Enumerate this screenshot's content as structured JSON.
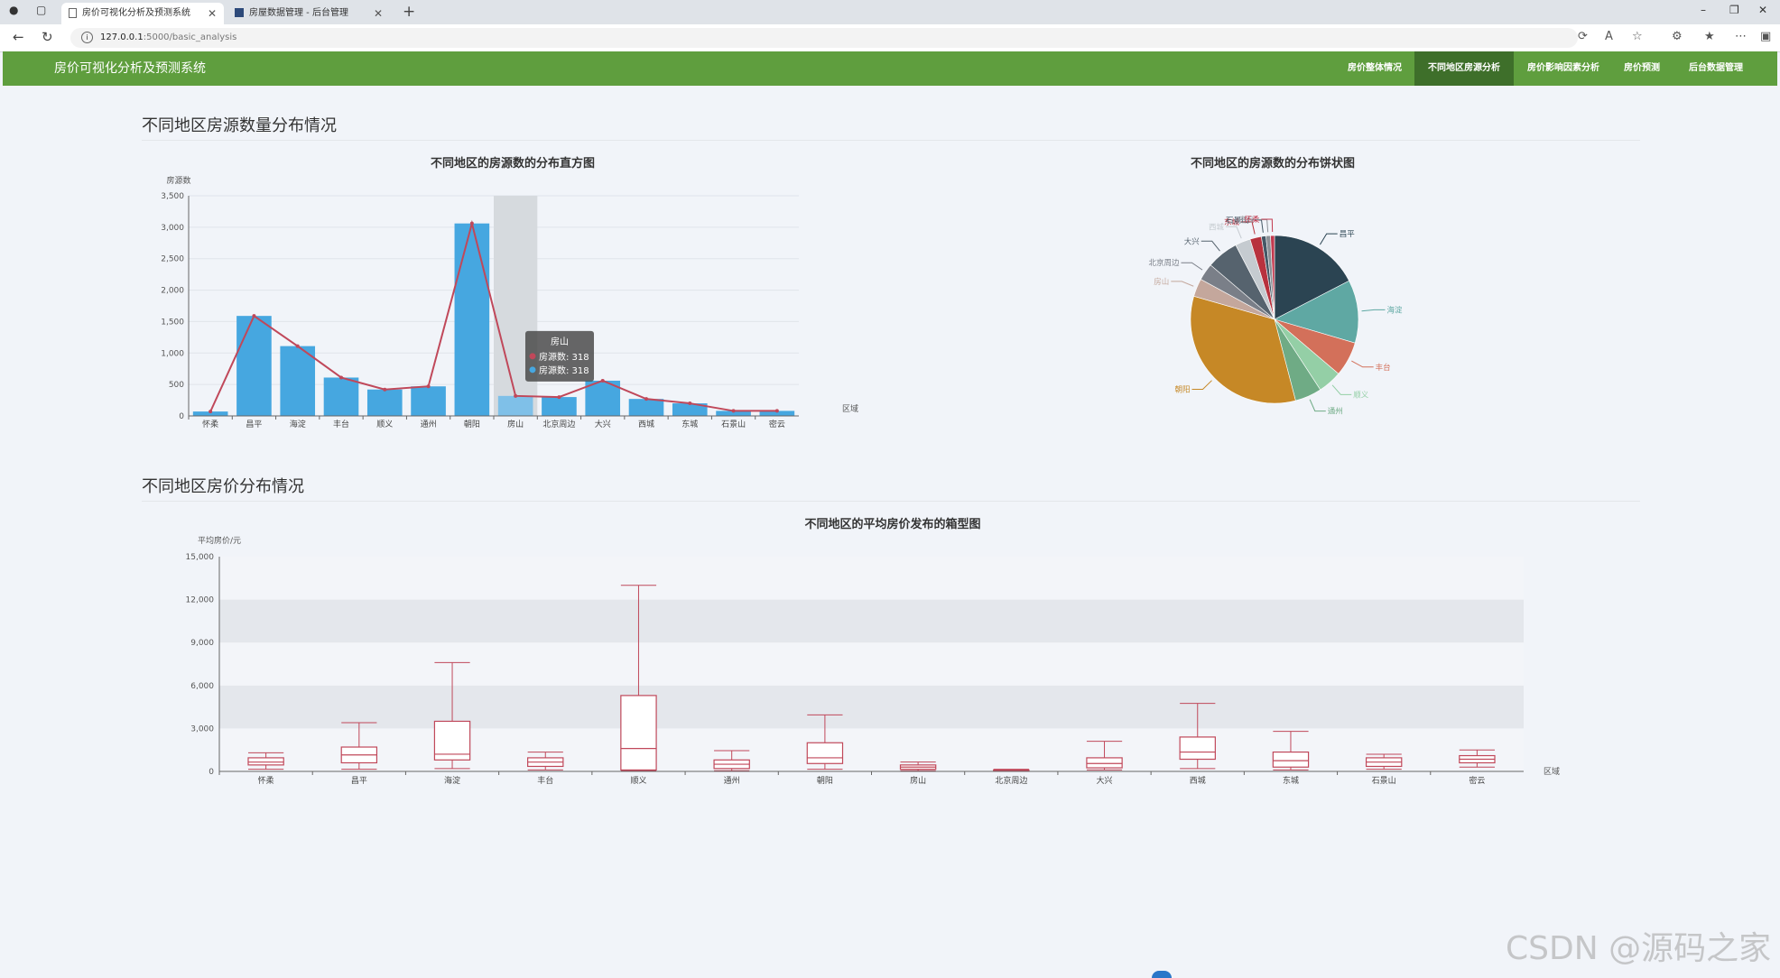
{
  "browser": {
    "tabs": [
      {
        "title": "房价可视化分析及预测系统"
      },
      {
        "title": "房屋数据管理 - 后台管理"
      }
    ],
    "url_host": "127.0.0.1",
    "url_path": ":5000/basic_analysis"
  },
  "app": {
    "brand": "房价可视化分析及预测系统",
    "nav": [
      {
        "label": "房价整体情况"
      },
      {
        "label": "不同地区房源分析",
        "active": true
      },
      {
        "label": "房价影响因素分析"
      },
      {
        "label": "房价预测"
      },
      {
        "label": "后台数据管理"
      }
    ]
  },
  "sections": {
    "count_title": "不同地区房源数量分布情况",
    "price_title": "不同地区房价分布情况"
  },
  "watermark": "CSDN @源码之家",
  "colors": {
    "nav_green": "#5f9e3e",
    "nav_active": "#3e6f2a",
    "bar_blue": "#46a7e0",
    "line_red": "#c0485a",
    "box_red": "#c0485a"
  },
  "chart_data": [
    {
      "type": "bar",
      "title": "不同地区的房源数的分布直方图",
      "xlabel": "区域",
      "ylabel": "房源数",
      "ylim": [
        0,
        3500
      ],
      "yticks": [
        "0",
        "500",
        "1,000",
        "1,500",
        "2,000",
        "2,500",
        "3,000",
        "3,500"
      ],
      "categories": [
        "怀柔",
        "昌平",
        "海淀",
        "丰台",
        "顺义",
        "通州",
        "朝阳",
        "房山",
        "北京周边",
        "大兴",
        "西城",
        "东城",
        "石景山",
        "密云"
      ],
      "series": [
        {
          "name": "房源数",
          "kind": "bar",
          "values": [
            70,
            1590,
            1110,
            610,
            420,
            470,
            3060,
            318,
            300,
            560,
            270,
            200,
            80,
            80
          ]
        },
        {
          "name": "房源数",
          "kind": "line",
          "values": [
            70,
            1590,
            1110,
            610,
            420,
            470,
            3060,
            318,
            300,
            560,
            270,
            200,
            80,
            80
          ]
        }
      ],
      "tooltip": {
        "category": "房山",
        "rows": [
          {
            "label": "房源数",
            "value": "318"
          },
          {
            "label": "房源数",
            "value": "318"
          }
        ]
      },
      "grid": true
    },
    {
      "type": "pie",
      "title": "不同地区的房源数的分布饼状图",
      "slices": [
        {
          "label": "昌平",
          "value": 1590,
          "color": "#2b4452"
        },
        {
          "label": "海淀",
          "value": 1110,
          "color": "#5fa8a3"
        },
        {
          "label": "丰台",
          "value": 610,
          "color": "#d3705a"
        },
        {
          "label": "顺义",
          "value": 420,
          "color": "#94cfa6"
        },
        {
          "label": "通州",
          "value": 470,
          "color": "#6fab85"
        },
        {
          "label": "朝阳",
          "value": 3060,
          "color": "#c68826"
        },
        {
          "label": "房山",
          "value": 318,
          "color": "#c4a79c"
        },
        {
          "label": "北京周边",
          "value": 300,
          "color": "#7a7f88"
        },
        {
          "label": "大兴",
          "value": 560,
          "color": "#56636e"
        },
        {
          "label": "西城",
          "value": 270,
          "color": "#c5cbd0"
        },
        {
          "label": "东城",
          "value": 200,
          "color": "#b8323e"
        },
        {
          "label": "石景山",
          "value": 80,
          "color": "#445866"
        },
        {
          "label": "密云",
          "value": 80,
          "color": "#8b9096"
        },
        {
          "label": "怀柔",
          "value": 70,
          "color": "#c23a4f"
        }
      ]
    },
    {
      "type": "box",
      "title": "不同地区的平均房价发布的箱型图",
      "xlabel": "区域",
      "ylabel": "平均房价/元",
      "ylim": [
        0,
        15000
      ],
      "yticks": [
        "0",
        "3,000",
        "6,000",
        "9,000",
        "12,000",
        "15,000"
      ],
      "categories": [
        "怀柔",
        "昌平",
        "海淀",
        "丰台",
        "顺义",
        "通州",
        "朝阳",
        "房山",
        "北京周边",
        "大兴",
        "西城",
        "东城",
        "石景山",
        "密云"
      ],
      "boxes": [
        {
          "min": 150,
          "q1": 450,
          "median": 650,
          "q3": 950,
          "max": 1300
        },
        {
          "min": 150,
          "q1": 600,
          "median": 1150,
          "q3": 1700,
          "max": 3400
        },
        {
          "min": 200,
          "q1": 800,
          "median": 1200,
          "q3": 3500,
          "max": 7600
        },
        {
          "min": 100,
          "q1": 350,
          "median": 650,
          "q3": 950,
          "max": 1350
        },
        {
          "min": 50,
          "q1": 100,
          "median": 1600,
          "q3": 5300,
          "max": 13000
        },
        {
          "min": 50,
          "q1": 200,
          "median": 500,
          "q3": 800,
          "max": 1450
        },
        {
          "min": 150,
          "q1": 550,
          "median": 950,
          "q3": 2000,
          "max": 3950
        },
        {
          "min": 50,
          "q1": 150,
          "median": 300,
          "q3": 450,
          "max": 650
        },
        {
          "min": 20,
          "q1": 40,
          "median": 70,
          "q3": 100,
          "max": 150
        },
        {
          "min": 100,
          "q1": 250,
          "median": 550,
          "q3": 950,
          "max": 2100
        },
        {
          "min": 200,
          "q1": 850,
          "median": 1350,
          "q3": 2400,
          "max": 4750
        },
        {
          "min": 100,
          "q1": 300,
          "median": 750,
          "q3": 1350,
          "max": 2800
        },
        {
          "min": 150,
          "q1": 350,
          "median": 650,
          "q3": 950,
          "max": 1200
        },
        {
          "min": 300,
          "q1": 600,
          "median": 850,
          "q3": 1100,
          "max": 1500
        }
      ],
      "grid": true
    }
  ]
}
